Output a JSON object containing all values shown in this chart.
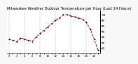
{
  "title": "Milwaukee Weather Outdoor Temperature per Hour (Last 24 Hours)",
  "hours": [
    0,
    1,
    2,
    3,
    4,
    5,
    6,
    7,
    8,
    9,
    10,
    11,
    12,
    13,
    14,
    15,
    16,
    17,
    18,
    19,
    20,
    21,
    22,
    23
  ],
  "temps": [
    28,
    27,
    26,
    29,
    28,
    27,
    26,
    30,
    33,
    36,
    39,
    42,
    45,
    47,
    50,
    50,
    49,
    48,
    47,
    46,
    43,
    37,
    28,
    18
  ],
  "line_color": "#dd0000",
  "marker_color": "#000000",
  "bg_color": "#f8f8f8",
  "plot_bg": "#ffffff",
  "grid_color": "#888888",
  "title_fontsize": 3.8,
  "tick_fontsize": 2.8,
  "ylabel_fontsize": 3.0,
  "ylim_min": 16,
  "ylim_max": 54,
  "yticks": [
    20,
    25,
    30,
    35,
    40,
    45,
    50
  ],
  "vgrid_positions": [
    0,
    4,
    8,
    12,
    16,
    20,
    24
  ]
}
